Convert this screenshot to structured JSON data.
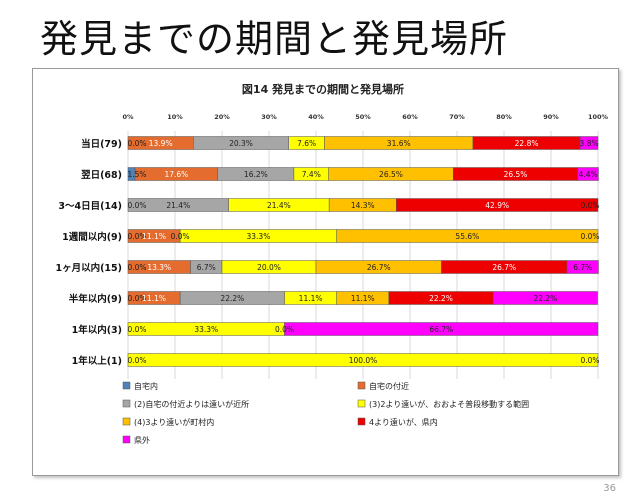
{
  "slide_title": "発見までの期間と発見場所",
  "page_number": "36",
  "chart_data": {
    "type": "bar",
    "orientation": "horizontal",
    "stacked": "percent",
    "title": "図14  発見までの期間と発見場所",
    "xlim": [
      0,
      100
    ],
    "xticks": [
      "0%",
      "10%",
      "20%",
      "30%",
      "40%",
      "50%",
      "60%",
      "70%",
      "80%",
      "90%",
      "100%"
    ],
    "legend_position": "bottom",
    "grid": true,
    "categories": [
      "当日(79)",
      "翌日(68)",
      "3～4日目(14)",
      "1週間以内(9)",
      "1ヶ月以内(15)",
      "半年以内(9)",
      "1年以内(3)",
      "1年以上(1)"
    ],
    "series": [
      {
        "name": "自宅内",
        "color": "#4f81bd",
        "values": [
          0.0,
          1.5,
          0.0,
          0.0,
          0.0,
          0.0,
          0.0,
          0.0
        ]
      },
      {
        "name": "自宅の付近",
        "color": "#e46c2e",
        "values": [
          13.9,
          17.6,
          0.0,
          11.1,
          13.3,
          11.1,
          0.0,
          0.0
        ]
      },
      {
        "name": "(2)自宅の付近よりは遠いが近所",
        "color": "#a6a6a6",
        "values": [
          20.3,
          16.2,
          21.4,
          0.0,
          6.7,
          22.2,
          0.0,
          0.0
        ]
      },
      {
        "name": "(3)2より遠いが、おおよそ普段移動する範囲",
        "color": "#ffff00",
        "values": [
          7.6,
          7.4,
          21.4,
          33.3,
          20.0,
          11.1,
          33.3,
          100.0
        ]
      },
      {
        "name": "(4)3より遠いが町村内",
        "color": "#ffc000",
        "values": [
          31.6,
          26.5,
          14.3,
          55.6,
          26.7,
          11.1,
          0.0,
          0.0
        ]
      },
      {
        "name": "4より遠いが、県内",
        "color": "#ee0000",
        "values": [
          22.8,
          26.5,
          42.9,
          0.0,
          26.7,
          22.2,
          0.0,
          0.0
        ]
      },
      {
        "name": "県外",
        "color": "#ff00ff",
        "values": [
          3.8,
          4.4,
          0.0,
          0.0,
          6.7,
          22.2,
          66.7,
          0.0
        ]
      }
    ],
    "data_labels": [
      [
        {
          "s": 0,
          "t": "0.0%"
        },
        {
          "s": 1,
          "t": "13.9%"
        },
        {
          "s": 2,
          "t": "20.3%"
        },
        {
          "s": 3,
          "t": "7.6%"
        },
        {
          "s": 4,
          "t": "31.6%"
        },
        {
          "s": 5,
          "t": "22.8%"
        },
        {
          "s": 6,
          "t": "3.8%"
        }
      ],
      [
        {
          "s": 0,
          "t": "1.5%"
        },
        {
          "s": 1,
          "t": "17.6%"
        },
        {
          "s": 2,
          "t": "16.2%"
        },
        {
          "s": 3,
          "t": "7.4%"
        },
        {
          "s": 4,
          "t": "26.5%"
        },
        {
          "s": 5,
          "t": "26.5%"
        },
        {
          "s": 6,
          "t": "4.4%"
        }
      ],
      [
        {
          "s": 0,
          "t": "0.0%"
        },
        {
          "s": 2,
          "t": "21.4%"
        },
        {
          "s": 3,
          "t": "21.4%"
        },
        {
          "s": 4,
          "t": "14.3%"
        },
        {
          "s": 5,
          "t": "42.9%"
        },
        {
          "s": 6,
          "t": "0.0%"
        }
      ],
      [
        {
          "s": 0,
          "t": "0.0%"
        },
        {
          "s": 1,
          "t": "11.1%"
        },
        {
          "s": 2,
          "t": "0.0%"
        },
        {
          "s": 3,
          "t": "33.3%"
        },
        {
          "s": 4,
          "t": "55.6%"
        },
        {
          "s": 6,
          "t": "0.0%"
        }
      ],
      [
        {
          "s": 0,
          "t": "0.0%"
        },
        {
          "s": 1,
          "t": "13.3%"
        },
        {
          "s": 2,
          "t": "6.7%"
        },
        {
          "s": 3,
          "t": "20.0%"
        },
        {
          "s": 4,
          "t": "26.7%"
        },
        {
          "s": 5,
          "t": "26.7%"
        },
        {
          "s": 6,
          "t": "6.7%"
        }
      ],
      [
        {
          "s": 0,
          "t": "0.0%"
        },
        {
          "s": 1,
          "t": "11.1%"
        },
        {
          "s": 2,
          "t": "22.2%"
        },
        {
          "s": 3,
          "t": "11.1%"
        },
        {
          "s": 4,
          "t": "11.1%"
        },
        {
          "s": 5,
          "t": "22.2%"
        },
        {
          "s": 6,
          "t": "22.2%"
        }
      ],
      [
        {
          "s": 0,
          "t": "0.0%"
        },
        {
          "s": 3,
          "t": "33.3%"
        },
        {
          "s": 4,
          "t": "0.0%"
        },
        {
          "s": 6,
          "t": "66.7%"
        }
      ],
      [
        {
          "s": 0,
          "t": "0.0%"
        },
        {
          "s": 3,
          "t": "100.0%"
        },
        {
          "s": 6,
          "t": "0.0%"
        }
      ]
    ]
  }
}
